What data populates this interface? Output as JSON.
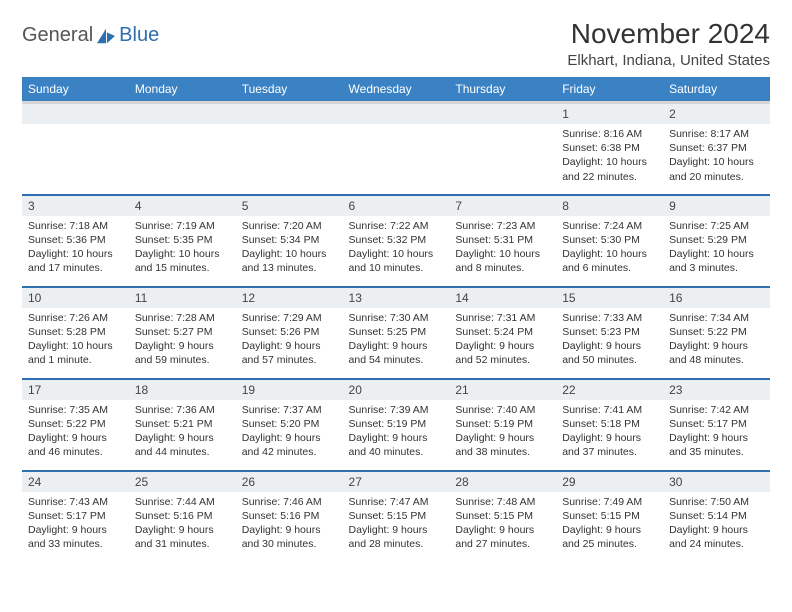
{
  "logo": {
    "general": "General",
    "blue": "Blue"
  },
  "title": "November 2024",
  "location": "Elkhart, Indiana, United States",
  "colors": {
    "header_bg": "#3b82c4",
    "header_text": "#ffffff",
    "row_divider": "#2f6fb0",
    "daynum_bg": "#eceff1",
    "logo_blue": "#2f6fb0"
  },
  "weekdays": [
    "Sunday",
    "Monday",
    "Tuesday",
    "Wednesday",
    "Thursday",
    "Friday",
    "Saturday"
  ],
  "grid": [
    [
      null,
      null,
      null,
      null,
      null,
      {
        "n": "1",
        "sr": "8:16 AM",
        "ss": "6:38 PM",
        "dl": "10 hours and 22 minutes."
      },
      {
        "n": "2",
        "sr": "8:17 AM",
        "ss": "6:37 PM",
        "dl": "10 hours and 20 minutes."
      }
    ],
    [
      {
        "n": "3",
        "sr": "7:18 AM",
        "ss": "5:36 PM",
        "dl": "10 hours and 17 minutes."
      },
      {
        "n": "4",
        "sr": "7:19 AM",
        "ss": "5:35 PM",
        "dl": "10 hours and 15 minutes."
      },
      {
        "n": "5",
        "sr": "7:20 AM",
        "ss": "5:34 PM",
        "dl": "10 hours and 13 minutes."
      },
      {
        "n": "6",
        "sr": "7:22 AM",
        "ss": "5:32 PM",
        "dl": "10 hours and 10 minutes."
      },
      {
        "n": "7",
        "sr": "7:23 AM",
        "ss": "5:31 PM",
        "dl": "10 hours and 8 minutes."
      },
      {
        "n": "8",
        "sr": "7:24 AM",
        "ss": "5:30 PM",
        "dl": "10 hours and 6 minutes."
      },
      {
        "n": "9",
        "sr": "7:25 AM",
        "ss": "5:29 PM",
        "dl": "10 hours and 3 minutes."
      }
    ],
    [
      {
        "n": "10",
        "sr": "7:26 AM",
        "ss": "5:28 PM",
        "dl": "10 hours and 1 minute."
      },
      {
        "n": "11",
        "sr": "7:28 AM",
        "ss": "5:27 PM",
        "dl": "9 hours and 59 minutes."
      },
      {
        "n": "12",
        "sr": "7:29 AM",
        "ss": "5:26 PM",
        "dl": "9 hours and 57 minutes."
      },
      {
        "n": "13",
        "sr": "7:30 AM",
        "ss": "5:25 PM",
        "dl": "9 hours and 54 minutes."
      },
      {
        "n": "14",
        "sr": "7:31 AM",
        "ss": "5:24 PM",
        "dl": "9 hours and 52 minutes."
      },
      {
        "n": "15",
        "sr": "7:33 AM",
        "ss": "5:23 PM",
        "dl": "9 hours and 50 minutes."
      },
      {
        "n": "16",
        "sr": "7:34 AM",
        "ss": "5:22 PM",
        "dl": "9 hours and 48 minutes."
      }
    ],
    [
      {
        "n": "17",
        "sr": "7:35 AM",
        "ss": "5:22 PM",
        "dl": "9 hours and 46 minutes."
      },
      {
        "n": "18",
        "sr": "7:36 AM",
        "ss": "5:21 PM",
        "dl": "9 hours and 44 minutes."
      },
      {
        "n": "19",
        "sr": "7:37 AM",
        "ss": "5:20 PM",
        "dl": "9 hours and 42 minutes."
      },
      {
        "n": "20",
        "sr": "7:39 AM",
        "ss": "5:19 PM",
        "dl": "9 hours and 40 minutes."
      },
      {
        "n": "21",
        "sr": "7:40 AM",
        "ss": "5:19 PM",
        "dl": "9 hours and 38 minutes."
      },
      {
        "n": "22",
        "sr": "7:41 AM",
        "ss": "5:18 PM",
        "dl": "9 hours and 37 minutes."
      },
      {
        "n": "23",
        "sr": "7:42 AM",
        "ss": "5:17 PM",
        "dl": "9 hours and 35 minutes."
      }
    ],
    [
      {
        "n": "24",
        "sr": "7:43 AM",
        "ss": "5:17 PM",
        "dl": "9 hours and 33 minutes."
      },
      {
        "n": "25",
        "sr": "7:44 AM",
        "ss": "5:16 PM",
        "dl": "9 hours and 31 minutes."
      },
      {
        "n": "26",
        "sr": "7:46 AM",
        "ss": "5:16 PM",
        "dl": "9 hours and 30 minutes."
      },
      {
        "n": "27",
        "sr": "7:47 AM",
        "ss": "5:15 PM",
        "dl": "9 hours and 28 minutes."
      },
      {
        "n": "28",
        "sr": "7:48 AM",
        "ss": "5:15 PM",
        "dl": "9 hours and 27 minutes."
      },
      {
        "n": "29",
        "sr": "7:49 AM",
        "ss": "5:15 PM",
        "dl": "9 hours and 25 minutes."
      },
      {
        "n": "30",
        "sr": "7:50 AM",
        "ss": "5:14 PM",
        "dl": "9 hours and 24 minutes."
      }
    ]
  ],
  "labels": {
    "sunrise": "Sunrise:",
    "sunset": "Sunset:",
    "daylight": "Daylight:"
  }
}
